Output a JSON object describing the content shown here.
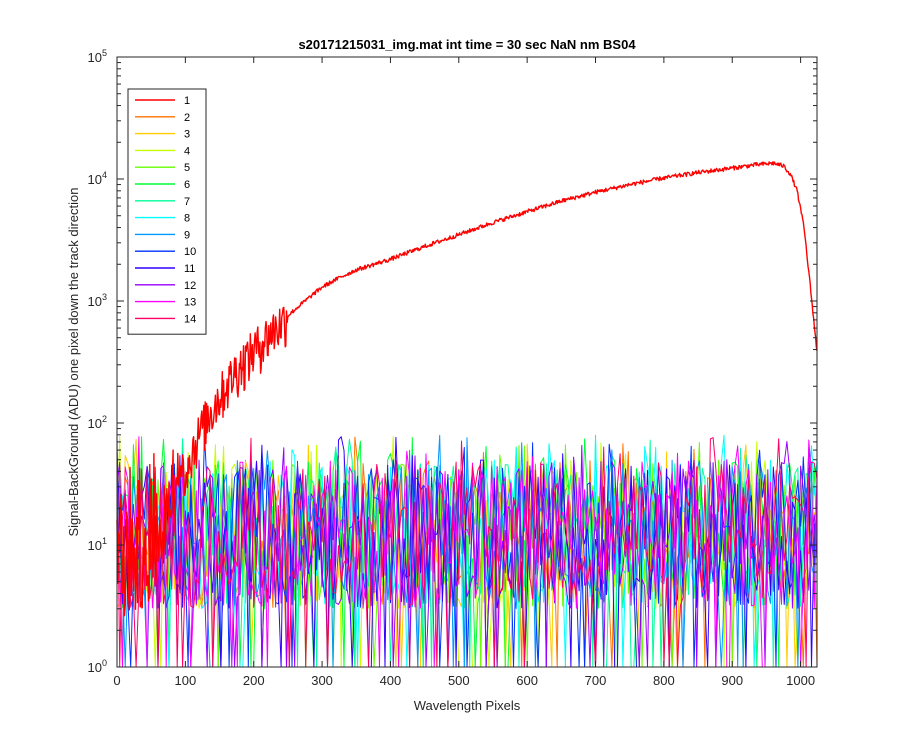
{
  "chart_data": {
    "type": "line",
    "title": "s20171215031_img.mat int time = 30 sec  NaN nm BS04",
    "xlabel": "Wavelength Pixels",
    "ylabel": "Signal-BackGround (ADU) one pixel down the track direction",
    "xlim": [
      0,
      1024
    ],
    "ylim": [
      1,
      100000
    ],
    "yscale": "log",
    "x_ticks": [
      0,
      100,
      200,
      300,
      400,
      500,
      600,
      700,
      800,
      900,
      1000
    ],
    "y_ticks": [
      {
        "value": 1,
        "base": "10",
        "exp": "0"
      },
      {
        "value": 10,
        "base": "10",
        "exp": "1"
      },
      {
        "value": 100,
        "base": "10",
        "exp": "2"
      },
      {
        "value": 1000,
        "base": "10",
        "exp": "3"
      },
      {
        "value": 10000,
        "base": "10",
        "exp": "4"
      },
      {
        "value": 100000,
        "base": "10",
        "exp": "5"
      }
    ],
    "grid": false,
    "legend_position": "top-left",
    "series": [
      {
        "name": "1",
        "color": "#ff0000",
        "kind": "signal",
        "x": [
          0,
          50,
          75,
          100,
          125,
          150,
          175,
          200,
          225,
          250,
          275,
          300,
          325,
          350,
          400,
          450,
          500,
          550,
          600,
          650,
          700,
          750,
          800,
          850,
          900,
          930,
          960,
          975,
          985,
          995,
          1005,
          1015,
          1024
        ],
        "y": [
          2,
          5,
          15,
          45,
          95,
          170,
          280,
          400,
          560,
          760,
          1000,
          1300,
          1550,
          1800,
          2200,
          2800,
          3500,
          4400,
          5400,
          6600,
          7800,
          9000,
          10200,
          11300,
          12300,
          13000,
          13500,
          12800,
          11000,
          8000,
          4000,
          1200,
          380
        ]
      },
      {
        "name": "2",
        "color": "#ff7300",
        "kind": "noise"
      },
      {
        "name": "3",
        "color": "#ffcc00",
        "kind": "noise"
      },
      {
        "name": "4",
        "color": "#c8ff00",
        "kind": "noise"
      },
      {
        "name": "5",
        "color": "#66ff00",
        "kind": "noise"
      },
      {
        "name": "6",
        "color": "#00ff33",
        "kind": "noise"
      },
      {
        "name": "7",
        "color": "#00ff99",
        "kind": "noise"
      },
      {
        "name": "8",
        "color": "#00ffff",
        "kind": "noise"
      },
      {
        "name": "9",
        "color": "#0099ff",
        "kind": "noise"
      },
      {
        "name": "10",
        "color": "#0033ff",
        "kind": "noise"
      },
      {
        "name": "11",
        "color": "#3300ff",
        "kind": "noise"
      },
      {
        "name": "12",
        "color": "#9900ff",
        "kind": "noise"
      },
      {
        "name": "13",
        "color": "#ff00ff",
        "kind": "noise"
      },
      {
        "name": "14",
        "color": "#ff0066",
        "kind": "noise"
      }
    ],
    "noise_level": {
      "min": 1,
      "typical": [
        3,
        50
      ],
      "max": 80
    }
  }
}
